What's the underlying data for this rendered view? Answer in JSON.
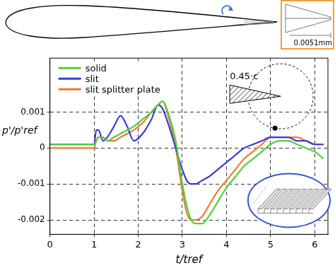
{
  "chart_data": {
    "type": "line",
    "x_label": "t/tref",
    "y_label": "p'/p'ref",
    "annotations": [
      "0.0051mm",
      "0.45·c"
    ],
    "x": [
      0,
      0.5,
      1.0,
      1.05,
      1.1,
      1.2,
      1.3,
      1.45,
      1.6,
      1.75,
      1.9,
      2.1,
      2.3,
      2.45,
      2.55,
      2.7,
      2.85,
      3.0,
      3.1,
      3.2,
      3.3,
      3.45,
      3.6,
      3.8,
      4.0,
      4.2,
      4.4,
      4.6,
      4.8,
      5.0,
      5.2,
      5.4,
      5.6,
      5.8,
      6.0,
      6.2
    ],
    "series": [
      {
        "name": "solid",
        "color": "#4fd13a",
        "values": [
          0.0001,
          0.0001,
          0.0001,
          0.0002,
          0.0003,
          0.0003,
          0.0002,
          0.0003,
          0.0004,
          0.0005,
          0.0006,
          0.0008,
          0.001,
          0.0012,
          0.0013,
          0.0009,
          0.0002,
          -0.001,
          -0.0016,
          -0.002,
          -0.0021,
          -0.0021,
          -0.0019,
          -0.0015,
          -0.0011,
          -0.0008,
          -0.0005,
          -0.0003,
          -0.0001,
          0.0001,
          0.0002,
          0.0002,
          0.0001,
          0,
          -0.0001,
          -0.0003
        ]
      },
      {
        "name": "slit",
        "color": "#3a3ad6",
        "values": [
          0.0001,
          0.0001,
          0.0001,
          0.0005,
          0.0005,
          0.0002,
          0.0003,
          0.0006,
          0.0009,
          0.0006,
          0.0002,
          0.0004,
          0.0008,
          0.0012,
          0.0011,
          0.0006,
          0,
          -0.0006,
          -0.0009,
          -0.001,
          -0.001,
          -0.0009,
          -0.0008,
          -0.0006,
          -0.0004,
          -0.0002,
          0,
          0.0001,
          0.0002,
          0.0003,
          0.0003,
          0.0003,
          0.0002,
          0.0002,
          0.0001,
          0.0001
        ]
      },
      {
        "name": "slit splitter plate",
        "color": "#f07a2e",
        "values": [
          0,
          0,
          0,
          0.0002,
          0.0003,
          0.0003,
          0.0002,
          0.0002,
          0.0003,
          0.0004,
          0.0005,
          0.0007,
          0.001,
          0.0012,
          0.0013,
          0.0008,
          0,
          -0.0012,
          -0.0018,
          -0.002,
          -0.002,
          -0.0019,
          -0.0016,
          -0.0012,
          -0.0009,
          -0.0006,
          -0.0003,
          -0.0001,
          0.0001,
          0.0003,
          0.0003,
          0.0003,
          0.0003,
          0.0002,
          0.0001,
          0.0001
        ]
      }
    ],
    "xlim": [
      0,
      6.3
    ],
    "xticks": [
      0,
      1,
      2,
      3,
      4,
      5,
      6
    ],
    "ylim": [
      -0.0024,
      0.0025
    ],
    "yticks": [
      -0.002,
      -0.001,
      0,
      0.001
    ],
    "grid": true,
    "legend": "upper left"
  }
}
